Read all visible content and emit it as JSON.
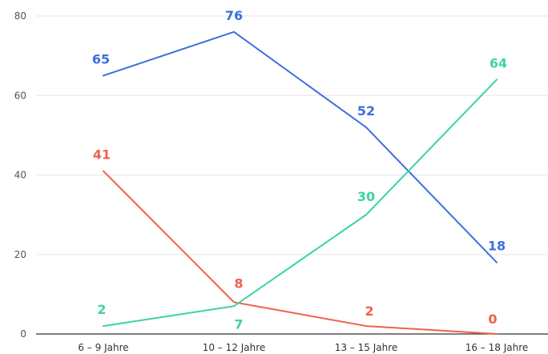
{
  "chart_data": {
    "type": "line",
    "categories": [
      "6 – 9 Jahre",
      "10 – 12 Jahre",
      "13 – 15 Jahre",
      "16 – 18 Jahre"
    ],
    "ylim": [
      0,
      80
    ],
    "yticks": [
      0,
      20,
      40,
      60,
      80
    ],
    "grid": true,
    "legend": "none",
    "series": [
      {
        "values": [
          65,
          76,
          52,
          18
        ],
        "color": "#3d6fdc"
      },
      {
        "values": [
          41,
          8,
          2,
          0
        ],
        "color": "#f0604c"
      },
      {
        "values": [
          2,
          7,
          30,
          64
        ],
        "color": "#3cd3a1"
      }
    ]
  }
}
